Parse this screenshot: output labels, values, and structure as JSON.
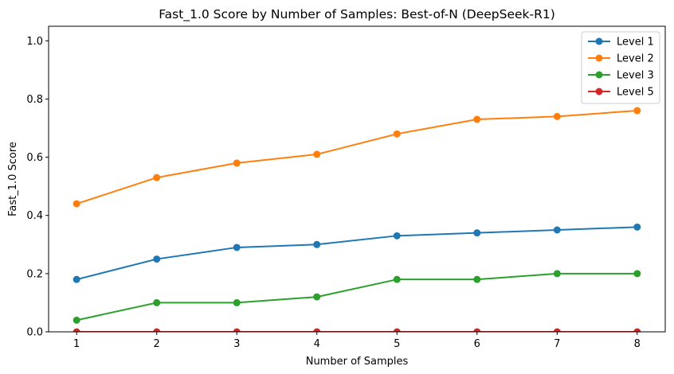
{
  "chart_data": {
    "type": "line",
    "title": "Fast_1.0 Score by Number of Samples: Best-of-N (DeepSeek-R1)",
    "xlabel": "Number of Samples",
    "ylabel": "Fast_1.0 Score",
    "x": [
      1,
      2,
      3,
      4,
      5,
      6,
      7,
      8
    ],
    "x_ticks": [
      "1",
      "2",
      "3",
      "4",
      "5",
      "6",
      "7",
      "8"
    ],
    "y_ticks": [
      "0.0",
      "0.2",
      "0.4",
      "0.6",
      "0.8",
      "1.0"
    ],
    "xlim": [
      0.65,
      8.35
    ],
    "ylim": [
      0,
      1.05
    ],
    "grid": false,
    "legend_position": "top-right",
    "series": [
      {
        "name": "Level 1",
        "color": "#1f77b4",
        "values": [
          0.18,
          0.25,
          0.29,
          0.3,
          0.33,
          0.34,
          0.35,
          0.36
        ]
      },
      {
        "name": "Level 2",
        "color": "#ff7f0e",
        "values": [
          0.44,
          0.53,
          0.58,
          0.61,
          0.68,
          0.73,
          0.74,
          0.76
        ]
      },
      {
        "name": "Level 3",
        "color": "#2ca02c",
        "values": [
          0.04,
          0.1,
          0.1,
          0.12,
          0.18,
          0.18,
          0.2,
          0.2
        ]
      },
      {
        "name": "Level 5",
        "color": "#d62728",
        "values": [
          0.0,
          0.0,
          0.0,
          0.0,
          0.0,
          0.0,
          0.0,
          0.0
        ]
      }
    ]
  }
}
